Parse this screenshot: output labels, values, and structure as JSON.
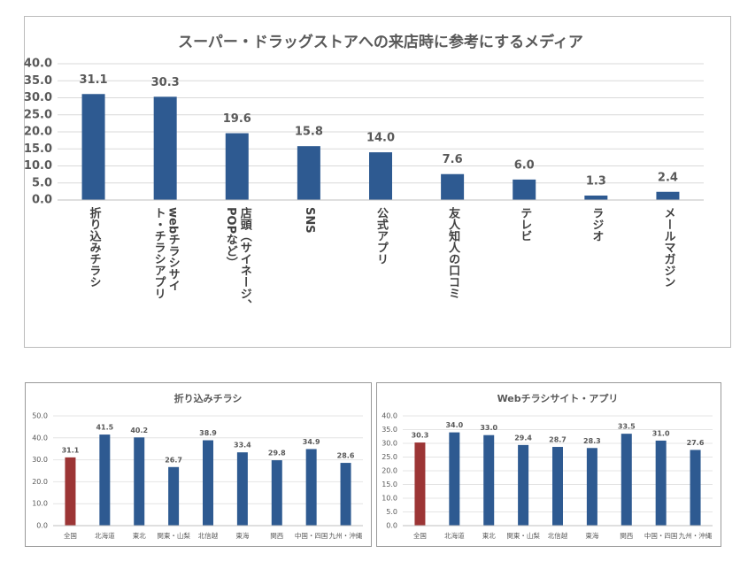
{
  "chart_data": [
    {
      "type": "bar",
      "title": "スーパー・ドラッグストアへの来店時に参考にするメディア",
      "categories": [
        "折り込みチラシ",
        "webチラシサイト・チラシアプリ",
        "店頭（サイネージ、POPなど）",
        "SNS",
        "公式アプリ",
        "友人知人の口コミ",
        "テレビ",
        "ラジオ",
        "メールマガジン"
      ],
      "values": [
        31.1,
        30.3,
        19.6,
        15.8,
        14.0,
        7.6,
        6.0,
        1.3,
        2.4
      ],
      "value_labels": [
        "31.1",
        "30.3",
        "19.6",
        "15.8",
        "14.0",
        "7.6",
        "6.0",
        "1.3",
        "2.4"
      ],
      "colors": [
        "#2e5a91",
        "#2e5a91",
        "#2e5a91",
        "#2e5a91",
        "#2e5a91",
        "#2e5a91",
        "#2e5a91",
        "#2e5a91",
        "#2e5a91"
      ],
      "ylim": [
        0,
        40
      ],
      "yticks": [
        {
          "value": 0,
          "label": "0.0"
        },
        {
          "value": 5,
          "label": "5.0"
        },
        {
          "value": 10,
          "label": "10.0"
        },
        {
          "value": 15,
          "label": "15.0"
        },
        {
          "value": 20,
          "label": "20.0"
        },
        {
          "value": 25,
          "label": "25.0"
        },
        {
          "value": 30,
          "label": "30.0"
        },
        {
          "value": 35,
          "label": "35.0"
        },
        {
          "value": 40,
          "label": "40.0"
        }
      ],
      "grid": true
    },
    {
      "type": "bar",
      "title": "折り込みチラシ",
      "categories": [
        "全国",
        "北海道",
        "東北",
        "関東・山梨",
        "北信越",
        "東海",
        "関西",
        "中国・四国",
        "九州・沖縄"
      ],
      "values": [
        31.1,
        41.5,
        40.2,
        26.7,
        38.9,
        33.4,
        29.8,
        34.9,
        28.6
      ],
      "value_labels": [
        "31.1",
        "41.5",
        "40.2",
        "26.7",
        "38.9",
        "33.4",
        "29.8",
        "34.9",
        "28.6"
      ],
      "colors": [
        "#9c3535",
        "#2e5a91",
        "#2e5a91",
        "#2e5a91",
        "#2e5a91",
        "#2e5a91",
        "#2e5a91",
        "#2e5a91",
        "#2e5a91"
      ],
      "ylim": [
        0,
        50
      ],
      "yticks": [
        {
          "value": 0,
          "label": "0.0"
        },
        {
          "value": 10,
          "label": "10.0"
        },
        {
          "value": 20,
          "label": "20.0"
        },
        {
          "value": 30,
          "label": "30.0"
        },
        {
          "value": 40,
          "label": "40.0"
        },
        {
          "value": 50,
          "label": "50.0"
        }
      ],
      "grid": true
    },
    {
      "type": "bar",
      "title": "Webチラシサイト・アプリ",
      "categories": [
        "全国",
        "北海道",
        "東北",
        "関東・山梨",
        "北信越",
        "東海",
        "関西",
        "中国・四国",
        "九州・沖縄"
      ],
      "values": [
        30.3,
        34.0,
        33.0,
        29.4,
        28.7,
        28.3,
        33.5,
        31.0,
        27.6
      ],
      "value_labels": [
        "30.3",
        "34.0",
        "33.0",
        "29.4",
        "28.7",
        "28.3",
        "33.5",
        "31.0",
        "27.6"
      ],
      "colors": [
        "#9c3535",
        "#2e5a91",
        "#2e5a91",
        "#2e5a91",
        "#2e5a91",
        "#2e5a91",
        "#2e5a91",
        "#2e5a91",
        "#2e5a91"
      ],
      "ylim": [
        0,
        40
      ],
      "yticks": [
        {
          "value": 0,
          "label": "0.0"
        },
        {
          "value": 5,
          "label": "5.0"
        },
        {
          "value": 10,
          "label": "10.0"
        },
        {
          "value": 15,
          "label": "15.0"
        },
        {
          "value": 20,
          "label": "20.0"
        },
        {
          "value": 25,
          "label": "25.0"
        },
        {
          "value": 30,
          "label": "30.0"
        },
        {
          "value": 35,
          "label": "35.0"
        },
        {
          "value": 40,
          "label": "40.0"
        }
      ],
      "grid": true
    }
  ]
}
